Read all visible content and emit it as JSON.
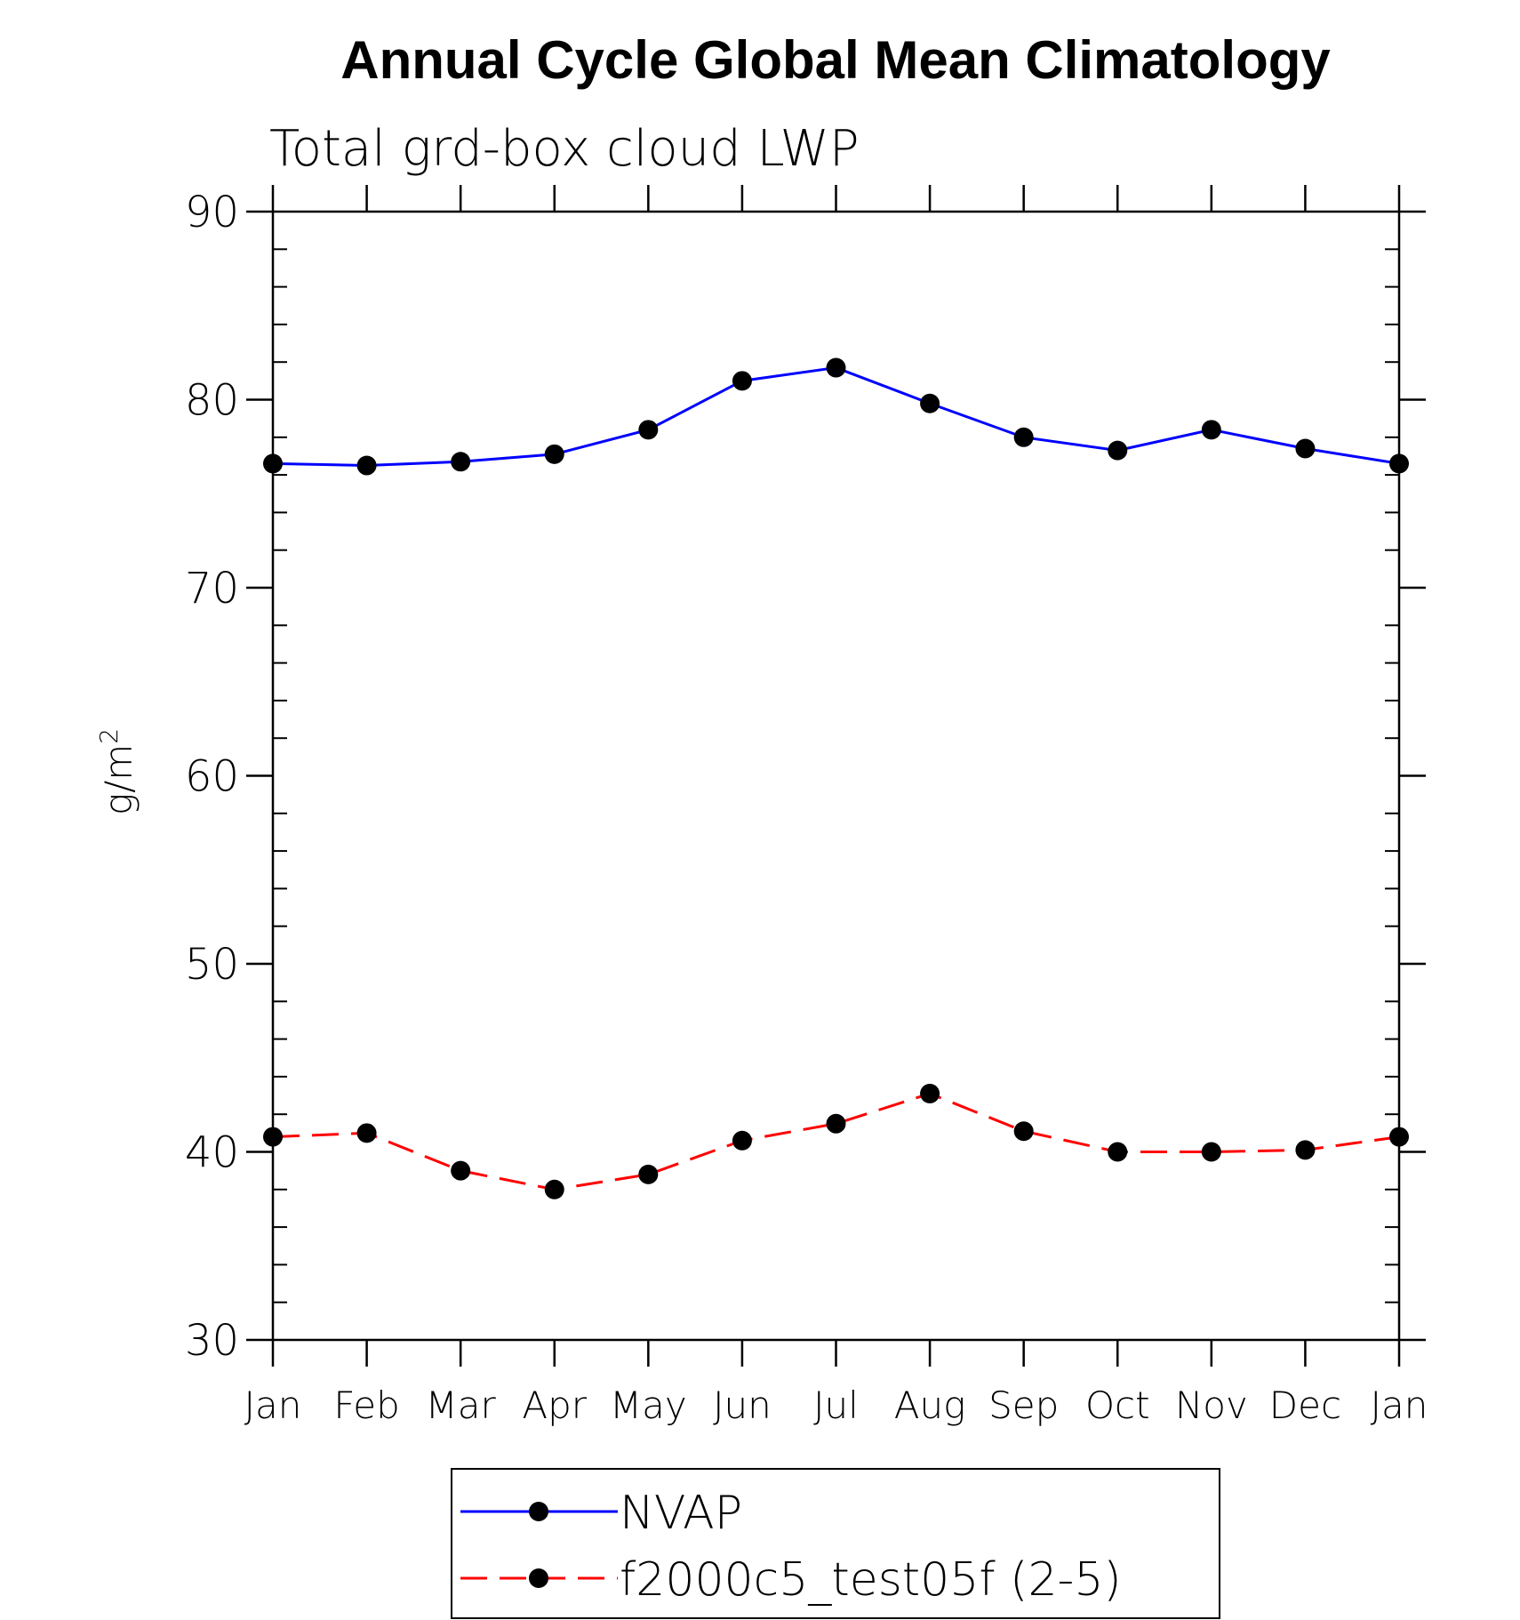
{
  "chart_data": {
    "type": "line",
    "title": "Annual Cycle Global Mean Climatology",
    "subtitle": "Total grd-box cloud LWP",
    "ylabel_base": "g/m",
    "ylabel_sup": "2",
    "xlabel": "",
    "categories": [
      "Jan",
      "Feb",
      "Mar",
      "Apr",
      "May",
      "Jun",
      "Jul",
      "Aug",
      "Sep",
      "Oct",
      "Nov",
      "Dec",
      "Jan"
    ],
    "ylim": [
      30,
      90
    ],
    "yticks": [
      30,
      40,
      50,
      60,
      70,
      80,
      90
    ],
    "yminor_step": 2,
    "grid": false,
    "legend_position": "bottom",
    "series": [
      {
        "name": "NVAP",
        "color": "#0000ff",
        "dash": "solid",
        "values": [
          76.6,
          76.5,
          76.7,
          77.1,
          78.4,
          81.0,
          81.7,
          79.8,
          78.0,
          77.3,
          78.4,
          77.4,
          76.6
        ]
      },
      {
        "name": "f2000c5_test05f (2-5)",
        "color": "#ff0000",
        "dash": "dashed",
        "values": [
          40.8,
          41.0,
          39.0,
          38.0,
          38.8,
          40.6,
          41.5,
          43.1,
          41.1,
          40.0,
          40.0,
          40.1,
          40.8
        ]
      }
    ]
  }
}
